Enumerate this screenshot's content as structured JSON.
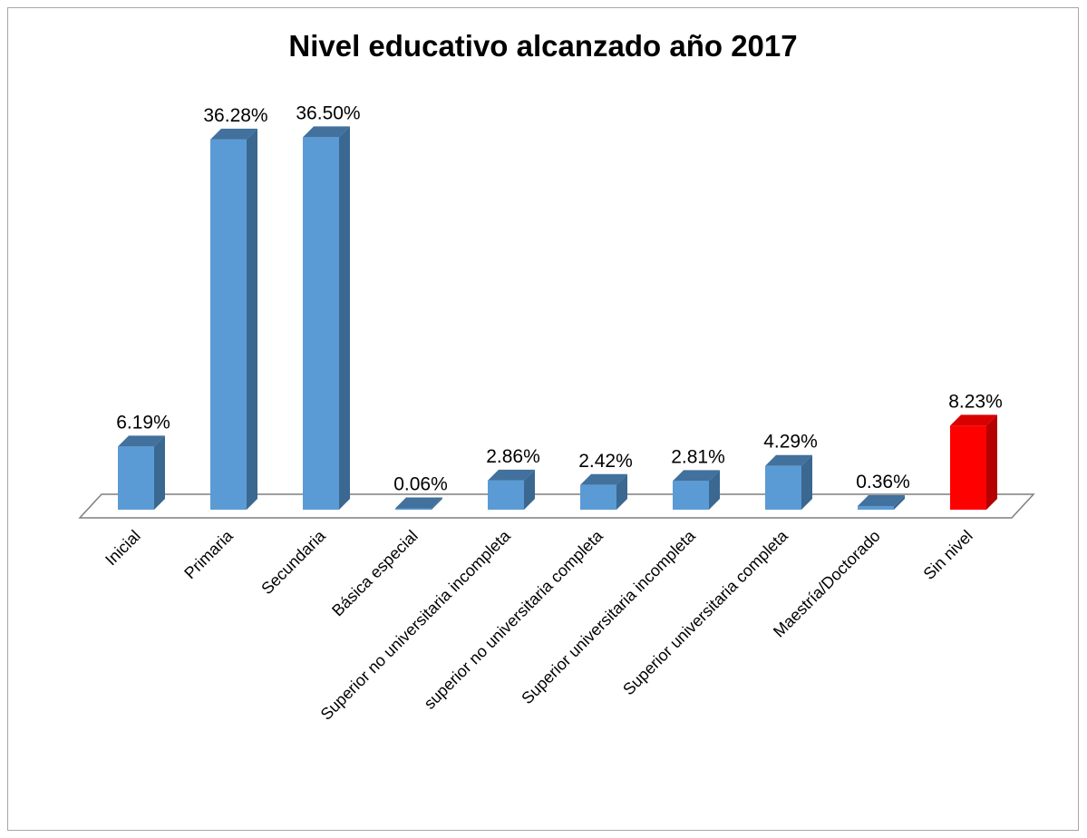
{
  "chart_data": {
    "type": "bar",
    "title": "Nivel educativo alcanzado año 2017",
    "categories": [
      "Inicial",
      "Primaria",
      "Secundaria",
      "Básica especial",
      "Superior no universitaria incompleta",
      "superior no universitaria completa",
      "Superior universitaria incompleta",
      "Superior universitaria completa",
      "Maestría/Doctorado",
      "Sin nivel"
    ],
    "values": [
      6.19,
      36.28,
      36.5,
      0.06,
      2.86,
      2.42,
      2.81,
      4.29,
      0.36,
      8.23
    ],
    "value_labels": [
      "6.19%",
      "36.28%",
      "36.50%",
      "0.06%",
      "2.86%",
      "2.42%",
      "2.81%",
      "4.29%",
      "0.36%",
      "8.23%"
    ],
    "ylim": [
      0,
      40
    ],
    "grid": false,
    "legend": "none",
    "style": "3d-column"
  },
  "colors": {
    "bar_front": "#5b9bd5",
    "bar_side": "#3a6891",
    "bar_top": "#41719c",
    "highlight_front": "#ff0000",
    "highlight_side": "#b40000",
    "highlight_top": "#d90000",
    "floor": "#7f7f7f"
  },
  "highlight_category": "Sin nivel"
}
